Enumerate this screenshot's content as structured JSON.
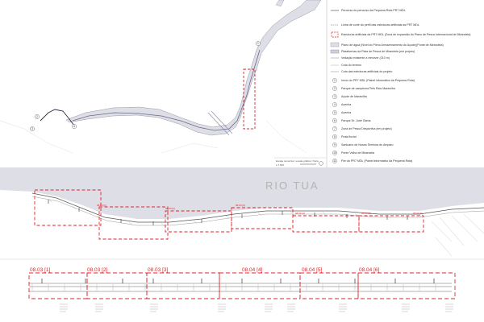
{
  "legend": {
    "items": [
      {
        "label": "Percurso do percurso da Pequena Rota PR7 MDL"
      },
      {
        "label": "Linha de corte do perfil das estruturas artificiais da PR7 MDL"
      },
      {
        "label": "Estruturas artificiais da PR7 MDL (Zona de expansão do Plano de Pesca Internacional de Mirandela)"
      },
      {
        "label": "Plano de água (Nível do Pleno Armazenamento do Açude)(Ponte de Mirandela)"
      },
      {
        "label": "Plataformas da Pista de Pesca de Mirandela (em projeto)"
      },
      {
        "label": "Vedação existente a remover (210 m)"
      },
      {
        "label": "Cota do terreno"
      },
      {
        "label": "Cota das estruturas artificiais do projeto"
      }
    ],
    "numbered": [
      {
        "num": "1",
        "label": "Início do PR7 MDL (Painel informativo da Pequena Rota)"
      },
      {
        "num": "2",
        "label": "Parque de campismo/Três Rios Maravilha"
      },
      {
        "num": "3",
        "label": "Açude de Maravilha"
      },
      {
        "num": "4",
        "label": "Azenha"
      },
      {
        "num": "5",
        "label": "Azenha"
      },
      {
        "num": "6",
        "label": "Parque Dr. José Gama"
      },
      {
        "num": "7",
        "label": "Zona de Pesca Desportiva (em projeto)"
      },
      {
        "num": "8",
        "label": "Praia fluvial"
      },
      {
        "num": "9",
        "label": "Santuário de Nossa Senhora do Amparo"
      },
      {
        "num": "10",
        "label": "Ponte Velha de Mirandela"
      },
      {
        "num": "11",
        "label": "Fim do PR7 MDL (Painel informativo da Pequena Rota)"
      }
    ],
    "scale_label": "Escala numérica / escala gráfica / Norte",
    "scale_value": "1:7.500"
  },
  "plan": {
    "river_label": "RIO TUA",
    "plan_tags": [
      "08.03 [1]",
      "08.03 [2]",
      "08.03 [3]",
      "08.04 [4]",
      "08.04 [5]",
      "08.04 [6]"
    ]
  },
  "sections": {
    "labels": [
      "08.03 [1]",
      "08.03 [2]",
      "08.03 [3]",
      "08.04 [4]",
      "08.04 [5]",
      "08.04 [6]"
    ]
  },
  "map_points": [
    "1",
    "2",
    "3",
    "4"
  ],
  "colors": {
    "accent": "#e0242b",
    "river": "#dedee6",
    "path": "#6a6a8a"
  }
}
